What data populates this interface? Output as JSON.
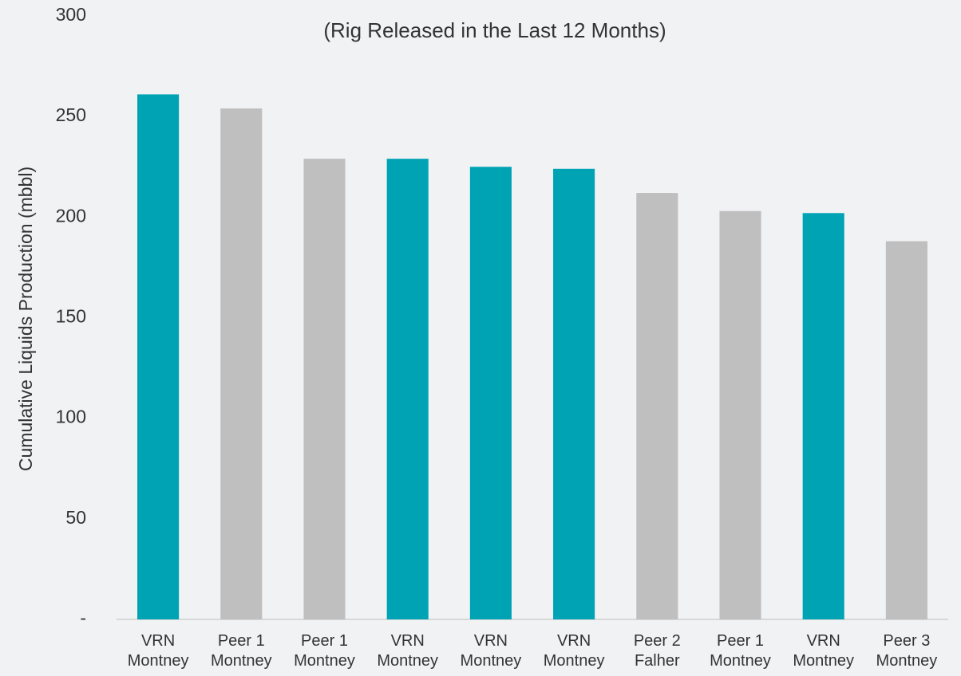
{
  "chart_data": {
    "type": "bar",
    "subtitle": "(Rig Released in the Last 12 Months)",
    "y_label": "Cumulative Liquids Production (mbbl)",
    "categories": [
      "VRN\nMontney",
      "Peer 1\nMontney",
      "Peer 1\nMontney",
      "VRN\nMontney",
      "VRN\nMontney",
      "VRN\nMontney",
      "Peer 2\nFalher",
      "Peer 1\nMontney",
      "VRN\nMontney",
      "Peer 3\nMontney"
    ],
    "values": [
      261,
      254,
      229,
      229,
      225,
      224,
      212,
      203,
      202,
      188
    ],
    "colors": [
      "#00a3b4",
      "#bfbfbf",
      "#bfbfbf",
      "#00a3b4",
      "#00a3b4",
      "#00a3b4",
      "#bfbfbf",
      "#bfbfbf",
      "#00a3b4",
      "#bfbfbf"
    ],
    "ylim": [
      0,
      300
    ],
    "yticks": [
      {
        "value": 0,
        "label": "-"
      },
      50,
      100,
      150,
      200,
      250,
      300
    ],
    "grid": false
  }
}
